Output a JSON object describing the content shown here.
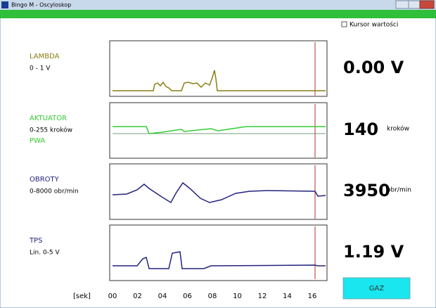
{
  "window": {
    "title": "Bingo M - Oscyloskop"
  },
  "cursor_checkbox": {
    "label": "Kursor wartości"
  },
  "channels": [
    {
      "name": "LAMBDA",
      "range": "0 - 1 V",
      "reading": "0.00 V",
      "color": "#8a7d12"
    },
    {
      "name": "AKTUATOR",
      "range": "0-255 kroków",
      "sub": "PWA",
      "reading": "140",
      "unit": "kroków",
      "color": "#33cc33"
    },
    {
      "name": "OBROTY",
      "range": "0-8000 obr/min",
      "reading": "3950",
      "unit": "obr/min",
      "color": "#23237e"
    },
    {
      "name": "TPS",
      "range": "Lin. 0-5 V",
      "reading": "1.19 V",
      "color": "#23237e"
    }
  ],
  "time_axis": {
    "unit": "[sek]",
    "ticks": [
      "00",
      "02",
      "04",
      "06",
      "08",
      "10",
      "12",
      "14",
      "16"
    ]
  },
  "button": {
    "label": "GAZ"
  }
}
